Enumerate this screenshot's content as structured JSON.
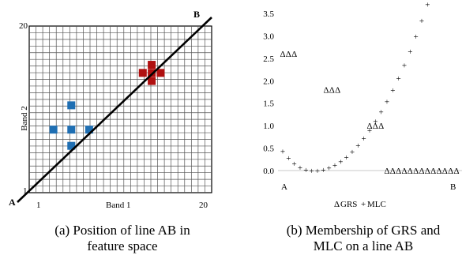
{
  "chart_data": [
    {
      "type": "scatter",
      "title": "",
      "xlabel": "Band 1",
      "ylabel": "Band 2",
      "xlim": [
        1,
        20
      ],
      "ylim": [
        1,
        20
      ],
      "x_ticks": [
        "1",
        "20"
      ],
      "y_ticks": [
        "1",
        "20"
      ],
      "grid": true,
      "line_endpoints": {
        "start_label": "A",
        "end_label": "B"
      },
      "colors": {
        "class_blue": "#1f6fb3",
        "class_red": "#b01010"
      },
      "series": [
        {
          "color": "#1f6fb3",
          "cells": [
            [
              5,
              6
            ],
            [
              5,
              8
            ],
            [
              5,
              11
            ],
            [
              3,
              8
            ],
            [
              7,
              8
            ]
          ]
        },
        {
          "color": "#b01010",
          "cells": [
            [
              13,
              15
            ],
            [
              14,
              14
            ],
            [
              14,
              15
            ],
            [
              14,
              16
            ],
            [
              15,
              15
            ]
          ]
        }
      ]
    },
    {
      "type": "scatter",
      "xlabel": "",
      "ylabel": "",
      "ylim": [
        0,
        3.5
      ],
      "y_ticks": [
        "0.0",
        "0.5",
        "1.0",
        "1.5",
        "2.0",
        "2.5",
        "3.0",
        "3.5"
      ],
      "x_endpoints": {
        "start_label": "A",
        "end_label": "B"
      },
      "legend": [
        "GRS",
        "MLC"
      ],
      "legend_markers": [
        "Δ",
        "+"
      ],
      "legend_position": "bottom",
      "series": [
        {
          "name": "GRS",
          "marker": "Δ",
          "x": [
            0.0,
            0.04,
            0.08,
            0.3,
            0.34,
            0.38,
            0.6,
            0.64,
            0.68,
            0.72,
            0.76,
            0.8,
            0.84,
            0.88,
            0.92,
            0.96,
            1.0,
            1.04,
            1.08,
            1.12,
            1.16,
            1.2
          ],
          "y": [
            2.6,
            2.6,
            2.6,
            1.8,
            1.8,
            1.8,
            1.0,
            1.0,
            1.0,
            0.0,
            0.0,
            0.0,
            0.0,
            0.0,
            0.0,
            0.0,
            0.0,
            0.0,
            0.0,
            0.0,
            0.0,
            0.0
          ]
        },
        {
          "name": "MLC",
          "marker": "+",
          "x": [
            0.0,
            0.04,
            0.08,
            0.12,
            0.16,
            0.2,
            0.24,
            0.28,
            0.32,
            0.36,
            0.4,
            0.44,
            0.48,
            0.52,
            0.56,
            0.6,
            0.64,
            0.68,
            0.72,
            0.76,
            0.8,
            0.84,
            0.88,
            0.92,
            0.96,
            1.0
          ],
          "y": [
            0.43,
            0.28,
            0.16,
            0.07,
            0.02,
            0.0,
            0.0,
            0.02,
            0.06,
            0.12,
            0.2,
            0.3,
            0.42,
            0.56,
            0.72,
            0.9,
            1.1,
            1.31,
            1.54,
            1.79,
            2.06,
            2.35,
            2.66,
            2.99,
            3.34,
            3.7
          ]
        }
      ]
    }
  ],
  "captions": {
    "left_line1": "(a) Position of line AB in",
    "left_line2": "feature space",
    "right_line1": "(b) Membership of GRS and",
    "right_line2": "MLC on a line AB"
  }
}
